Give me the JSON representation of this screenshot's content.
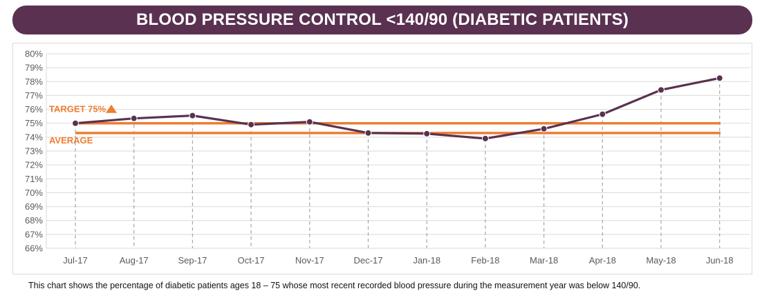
{
  "title": "BLOOD PRESSURE CONTROL <140/90 (DIABETIC PATIENTS)",
  "caption": "This chart shows the percentage of diabetic patients ages 18 – 75 whose most recent recorded blood pressure during the measurement year was below 140/90.",
  "colors": {
    "banner": "#5a3150",
    "series": "#5a3150",
    "reference": "#ed7d31",
    "grid": "#d9d9d9",
    "drop_lines": "#a6a6a6"
  },
  "chart_data": {
    "type": "line",
    "categories": [
      "Jul-17",
      "Aug-17",
      "Sep-17",
      "Oct-17",
      "Nov-17",
      "Dec-17",
      "Jan-18",
      "Feb-18",
      "Mar-18",
      "Apr-18",
      "May-18",
      "Jun-18"
    ],
    "series": [
      {
        "values": [
          75.0,
          75.35,
          75.55,
          74.9,
          75.1,
          74.3,
          74.25,
          73.9,
          74.6,
          75.65,
          77.4,
          78.25
        ]
      }
    ],
    "reference_lines": [
      {
        "label": "TARGET 75%",
        "value": 75.0,
        "marker": "triangle-up"
      },
      {
        "label": "AVERAGE",
        "value": 74.3
      }
    ],
    "y_ticks": [
      "66%",
      "67%",
      "68%",
      "69%",
      "70%",
      "71%",
      "72%",
      "73%",
      "74%",
      "75%",
      "76%",
      "77%",
      "78%",
      "79%",
      "80%"
    ],
    "ylim": [
      66,
      80
    ],
    "grid": true,
    "drop_lines": true,
    "legend": "none"
  }
}
